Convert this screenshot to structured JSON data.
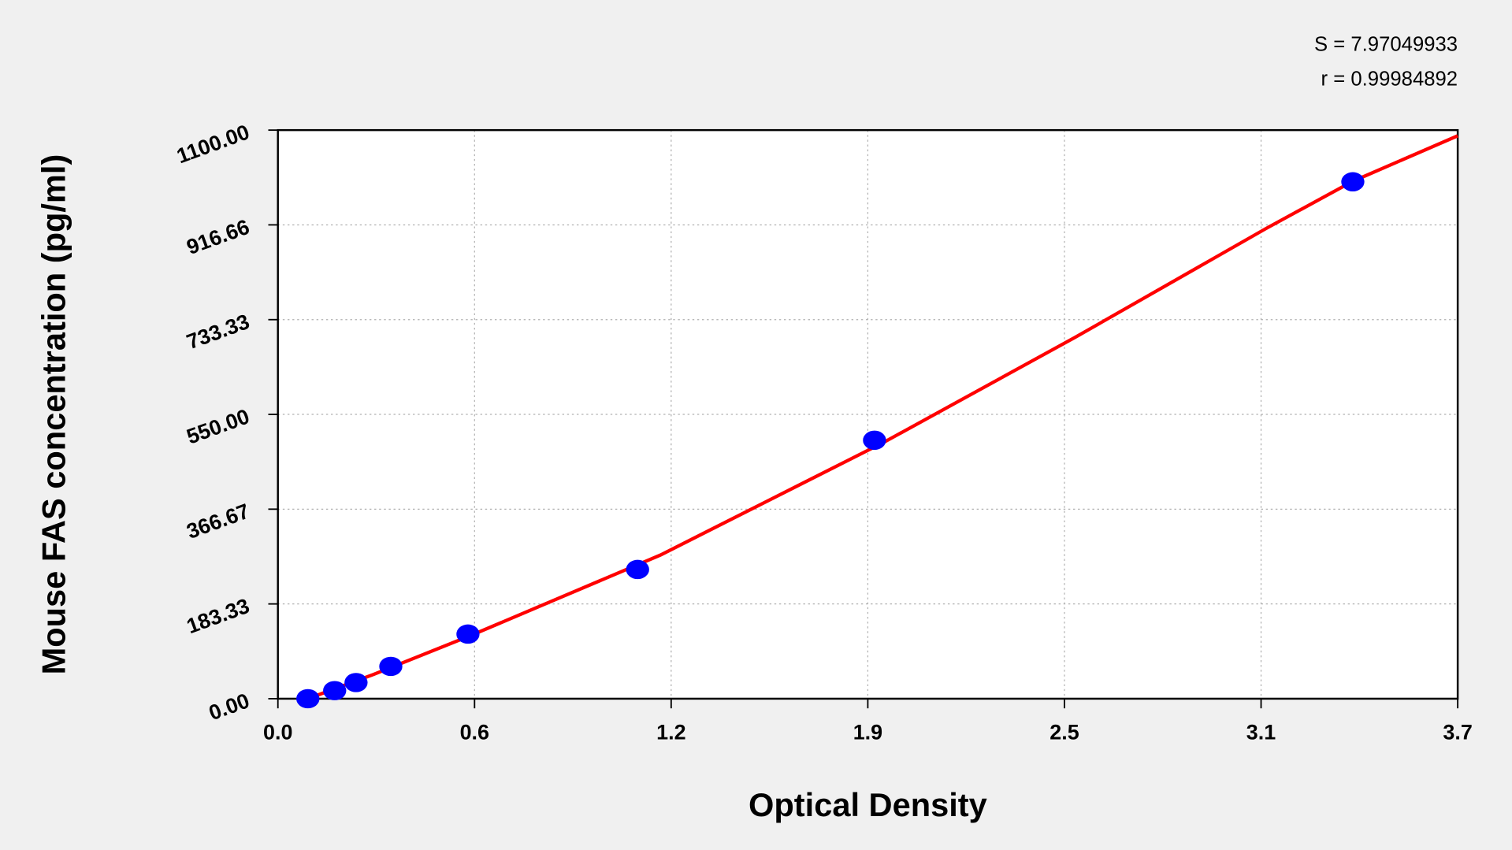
{
  "chart_data": {
    "type": "scatter",
    "x_label": "Optical Density",
    "y_label": "Mouse FAS concentration (pg/ml)",
    "annotations": [
      "S = 7.97049933",
      "r = 0.99984892"
    ],
    "xlim": [
      0,
      3.7
    ],
    "xticks": [
      {
        "value": 0,
        "label": "0.0"
      },
      {
        "value": 0.6167,
        "label": "0.6"
      },
      {
        "value": 1.2333,
        "label": "1.2"
      },
      {
        "value": 1.85,
        "label": "1.9"
      },
      {
        "value": 2.4667,
        "label": "2.5"
      },
      {
        "value": 3.0833,
        "label": "3.1"
      },
      {
        "value": 3.7,
        "label": "3.7"
      }
    ],
    "ylim": [
      0,
      1100
    ],
    "yticks": [
      {
        "value": 0,
        "label": "0.00"
      },
      {
        "value": 183.33,
        "label": "183.33"
      },
      {
        "value": 366.67,
        "label": "366.67"
      },
      {
        "value": 550,
        "label": "550.00"
      },
      {
        "value": 733.33,
        "label": "733.33"
      },
      {
        "value": 916.66,
        "label": "916.66"
      },
      {
        "value": 1100,
        "label": "1100.00"
      }
    ],
    "grid": true,
    "series": [
      {
        "type": "line",
        "color": "#ff0000",
        "x": [
          0.094,
          0.3,
          0.6,
          1.2,
          1.9,
          2.5,
          3.1,
          3.371,
          3.7
        ],
        "values": [
          0,
          47,
          121,
          278,
          496,
          699,
          910,
          1001,
          1089
        ]
      },
      {
        "type": "scatter",
        "color": "#0000ff",
        "x": [
          0.094,
          0.178,
          0.245,
          0.354,
          0.596,
          1.128,
          1.871,
          3.371
        ],
        "values": [
          0,
          15.6,
          31.25,
          62.5,
          125,
          250,
          500,
          1000
        ]
      }
    ]
  }
}
